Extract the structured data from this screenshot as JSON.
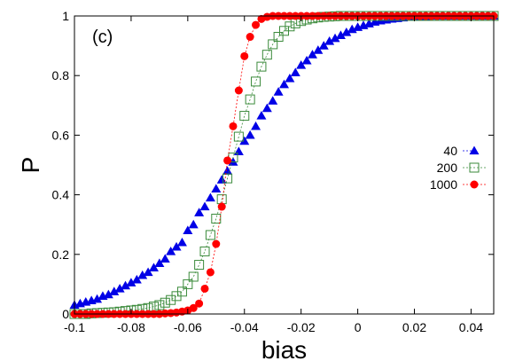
{
  "chart_data": {
    "type": "scatter",
    "panel_label": "(c)",
    "xlabel": "bias",
    "ylabel": "P",
    "xlim": [
      -0.1,
      0.048
    ],
    "ylim": [
      0,
      1
    ],
    "xticks": [
      "-0.1",
      "-0.08",
      "-0.06",
      "-0.04",
      "-0.02",
      "0",
      "0.02",
      "0.04"
    ],
    "yticks": [
      "0",
      "0.2",
      "0.4",
      "0.6",
      "0.8",
      "1"
    ],
    "legend_position": "right-middle",
    "grid": false,
    "series": [
      {
        "name": "40",
        "marker": "filled-triangle",
        "color": "#0000e6",
        "line": false,
        "points": [
          [
            -0.1,
            0.03
          ],
          [
            -0.098,
            0.035
          ],
          [
            -0.096,
            0.04
          ],
          [
            -0.094,
            0.045
          ],
          [
            -0.092,
            0.05
          ],
          [
            -0.09,
            0.06
          ],
          [
            -0.088,
            0.065
          ],
          [
            -0.086,
            0.075
          ],
          [
            -0.084,
            0.085
          ],
          [
            -0.082,
            0.095
          ],
          [
            -0.08,
            0.105
          ],
          [
            -0.078,
            0.115
          ],
          [
            -0.076,
            0.13
          ],
          [
            -0.074,
            0.14
          ],
          [
            -0.072,
            0.155
          ],
          [
            -0.07,
            0.17
          ],
          [
            -0.068,
            0.185
          ],
          [
            -0.066,
            0.21
          ],
          [
            -0.064,
            0.225
          ],
          [
            -0.062,
            0.24
          ],
          [
            -0.06,
            0.28
          ],
          [
            -0.058,
            0.3
          ],
          [
            -0.056,
            0.34
          ],
          [
            -0.054,
            0.36
          ],
          [
            -0.052,
            0.39
          ],
          [
            -0.05,
            0.42
          ],
          [
            -0.048,
            0.45
          ],
          [
            -0.046,
            0.48
          ],
          [
            -0.044,
            0.51
          ],
          [
            -0.042,
            0.545
          ],
          [
            -0.04,
            0.58
          ],
          [
            -0.038,
            0.6
          ],
          [
            -0.036,
            0.63
          ],
          [
            -0.034,
            0.665
          ],
          [
            -0.032,
            0.69
          ],
          [
            -0.03,
            0.715
          ],
          [
            -0.028,
            0.745
          ],
          [
            -0.026,
            0.77
          ],
          [
            -0.024,
            0.79
          ],
          [
            -0.022,
            0.81
          ],
          [
            -0.02,
            0.835
          ],
          [
            -0.018,
            0.85
          ],
          [
            -0.016,
            0.87
          ],
          [
            -0.014,
            0.885
          ],
          [
            -0.012,
            0.9
          ],
          [
            -0.01,
            0.915
          ],
          [
            -0.008,
            0.925
          ],
          [
            -0.006,
            0.935
          ],
          [
            -0.004,
            0.945
          ],
          [
            -0.002,
            0.955
          ],
          [
            0.0,
            0.962
          ],
          [
            0.002,
            0.968
          ],
          [
            0.004,
            0.974
          ],
          [
            0.006,
            0.98
          ],
          [
            0.008,
            0.984
          ],
          [
            0.01,
            0.987
          ],
          [
            0.012,
            0.99
          ],
          [
            0.014,
            0.992
          ],
          [
            0.016,
            0.994
          ],
          [
            0.018,
            0.996
          ],
          [
            0.02,
            0.997
          ],
          [
            0.022,
            0.998
          ],
          [
            0.024,
            0.999
          ],
          [
            0.026,
            1.0
          ],
          [
            0.028,
            1.0
          ],
          [
            0.03,
            1.0
          ],
          [
            0.032,
            1.0
          ],
          [
            0.034,
            1.0
          ],
          [
            0.036,
            1.0
          ],
          [
            0.038,
            1.0
          ],
          [
            0.04,
            1.0
          ],
          [
            0.042,
            1.0
          ],
          [
            0.044,
            1.0
          ],
          [
            0.046,
            1.0
          ],
          [
            0.048,
            1.0
          ]
        ]
      },
      {
        "name": "200",
        "marker": "open-square",
        "color": "#3a8a3a",
        "line": true,
        "points": [
          [
            -0.1,
            0.0
          ],
          [
            -0.098,
            0.0
          ],
          [
            -0.096,
            0.0
          ],
          [
            -0.094,
            0.002
          ],
          [
            -0.092,
            0.003
          ],
          [
            -0.09,
            0.004
          ],
          [
            -0.088,
            0.005
          ],
          [
            -0.086,
            0.006
          ],
          [
            -0.084,
            0.008
          ],
          [
            -0.082,
            0.01
          ],
          [
            -0.08,
            0.012
          ],
          [
            -0.078,
            0.014
          ],
          [
            -0.076,
            0.017
          ],
          [
            -0.074,
            0.02
          ],
          [
            -0.072,
            0.025
          ],
          [
            -0.07,
            0.03
          ],
          [
            -0.068,
            0.038
          ],
          [
            -0.066,
            0.047
          ],
          [
            -0.064,
            0.06
          ],
          [
            -0.062,
            0.075
          ],
          [
            -0.06,
            0.1
          ],
          [
            -0.058,
            0.125
          ],
          [
            -0.056,
            0.165
          ],
          [
            -0.054,
            0.21
          ],
          [
            -0.052,
            0.265
          ],
          [
            -0.05,
            0.32
          ],
          [
            -0.048,
            0.385
          ],
          [
            -0.046,
            0.455
          ],
          [
            -0.044,
            0.525
          ],
          [
            -0.042,
            0.595
          ],
          [
            -0.04,
            0.665
          ],
          [
            -0.038,
            0.72
          ],
          [
            -0.036,
            0.78
          ],
          [
            -0.034,
            0.83
          ],
          [
            -0.032,
            0.87
          ],
          [
            -0.03,
            0.905
          ],
          [
            -0.028,
            0.93
          ],
          [
            -0.026,
            0.95
          ],
          [
            -0.024,
            0.965
          ],
          [
            -0.022,
            0.975
          ],
          [
            -0.02,
            0.983
          ],
          [
            -0.018,
            0.988
          ],
          [
            -0.016,
            0.992
          ],
          [
            -0.014,
            0.995
          ],
          [
            -0.012,
            0.997
          ],
          [
            -0.01,
            0.998
          ],
          [
            -0.008,
            0.999
          ],
          [
            -0.006,
            1.0
          ],
          [
            -0.004,
            1.0
          ],
          [
            -0.002,
            1.0
          ],
          [
            0.0,
            1.0
          ],
          [
            0.002,
            1.0
          ],
          [
            0.004,
            1.0
          ],
          [
            0.006,
            1.0
          ],
          [
            0.008,
            1.0
          ],
          [
            0.01,
            1.0
          ],
          [
            0.012,
            1.0
          ],
          [
            0.014,
            1.0
          ],
          [
            0.016,
            1.0
          ],
          [
            0.018,
            1.0
          ],
          [
            0.02,
            1.0
          ],
          [
            0.022,
            1.0
          ],
          [
            0.024,
            1.0
          ],
          [
            0.026,
            1.0
          ],
          [
            0.028,
            1.0
          ],
          [
            0.03,
            1.0
          ],
          [
            0.032,
            1.0
          ],
          [
            0.034,
            1.0
          ],
          [
            0.036,
            1.0
          ],
          [
            0.038,
            1.0
          ],
          [
            0.04,
            1.0
          ],
          [
            0.042,
            1.0
          ],
          [
            0.044,
            1.0
          ],
          [
            0.046,
            1.0
          ],
          [
            0.048,
            1.0
          ]
        ]
      },
      {
        "name": "1000",
        "marker": "filled-circle",
        "color": "#ff0000",
        "line": true,
        "points": [
          [
            -0.1,
            0.0
          ],
          [
            -0.098,
            0.0
          ],
          [
            -0.096,
            0.0
          ],
          [
            -0.094,
            0.0
          ],
          [
            -0.092,
            0.0
          ],
          [
            -0.09,
            0.0
          ],
          [
            -0.088,
            0.0
          ],
          [
            -0.086,
            0.0
          ],
          [
            -0.084,
            0.0
          ],
          [
            -0.082,
            0.0
          ],
          [
            -0.08,
            0.0
          ],
          [
            -0.078,
            0.0
          ],
          [
            -0.076,
            0.0
          ],
          [
            -0.074,
            0.0
          ],
          [
            -0.072,
            0.0
          ],
          [
            -0.07,
            0.0
          ],
          [
            -0.068,
            0.002
          ],
          [
            -0.066,
            0.003
          ],
          [
            -0.064,
            0.005
          ],
          [
            -0.062,
            0.008
          ],
          [
            -0.06,
            0.012
          ],
          [
            -0.058,
            0.02
          ],
          [
            -0.056,
            0.035
          ],
          [
            -0.054,
            0.085
          ],
          [
            -0.052,
            0.14
          ],
          [
            -0.05,
            0.235
          ],
          [
            -0.048,
            0.36
          ],
          [
            -0.046,
            0.515
          ],
          [
            -0.044,
            0.63
          ],
          [
            -0.042,
            0.75
          ],
          [
            -0.04,
            0.865
          ],
          [
            -0.038,
            0.93
          ],
          [
            -0.036,
            0.97
          ],
          [
            -0.034,
            0.99
          ],
          [
            -0.032,
            0.997
          ],
          [
            -0.03,
            1.0
          ],
          [
            -0.028,
            1.0
          ],
          [
            -0.026,
            1.0
          ],
          [
            -0.024,
            1.0
          ],
          [
            -0.022,
            1.0
          ],
          [
            -0.02,
            1.0
          ],
          [
            -0.018,
            1.0
          ],
          [
            -0.016,
            1.0
          ],
          [
            -0.014,
            1.0
          ],
          [
            -0.012,
            1.0
          ],
          [
            -0.01,
            1.0
          ],
          [
            -0.008,
            1.0
          ],
          [
            -0.006,
            1.0
          ],
          [
            -0.004,
            1.0
          ],
          [
            -0.002,
            1.0
          ],
          [
            0.0,
            1.0
          ],
          [
            0.002,
            1.0
          ],
          [
            0.004,
            1.0
          ],
          [
            0.006,
            1.0
          ],
          [
            0.008,
            1.0
          ],
          [
            0.01,
            1.0
          ],
          [
            0.012,
            1.0
          ],
          [
            0.014,
            1.0
          ],
          [
            0.016,
            1.0
          ],
          [
            0.018,
            1.0
          ],
          [
            0.02,
            1.0
          ],
          [
            0.022,
            1.0
          ],
          [
            0.024,
            1.0
          ],
          [
            0.026,
            1.0
          ],
          [
            0.028,
            1.0
          ],
          [
            0.03,
            1.0
          ],
          [
            0.032,
            1.0
          ],
          [
            0.034,
            1.0
          ],
          [
            0.036,
            1.0
          ],
          [
            0.038,
            1.0
          ],
          [
            0.04,
            1.0
          ],
          [
            0.042,
            1.0
          ],
          [
            0.044,
            1.0
          ],
          [
            0.046,
            1.0
          ],
          [
            0.048,
            1.0
          ]
        ]
      }
    ]
  }
}
